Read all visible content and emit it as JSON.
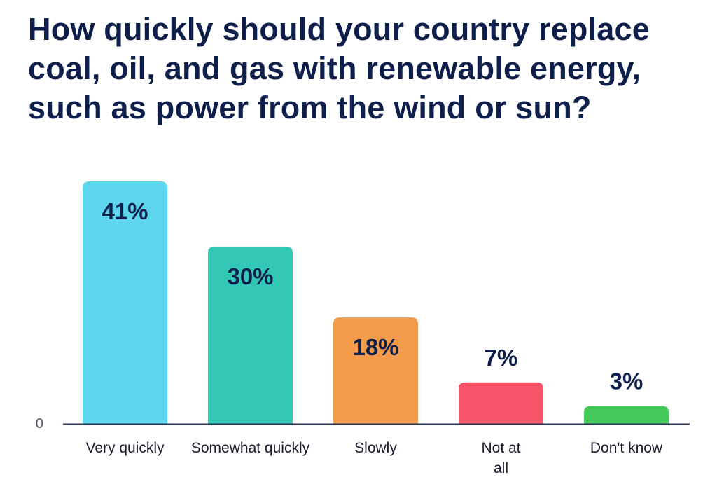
{
  "chart_data": {
    "type": "bar",
    "title": "How quickly should your country replace coal, oil, and gas with renewable energy, such as power from the wind or sun?",
    "categories": [
      "Very quickly",
      "Somewhat quickly",
      "Slowly",
      "Not at all",
      "Don't know"
    ],
    "category_lines": [
      [
        "Very quickly"
      ],
      [
        "Somewhat quickly"
      ],
      [
        "Slowly"
      ],
      [
        "Not at",
        "all"
      ],
      [
        "Don't know"
      ]
    ],
    "values": [
      41,
      30,
      18,
      7,
      3
    ],
    "value_labels": [
      "41%",
      "30%",
      "18%",
      "7%",
      "3%"
    ],
    "colors": [
      "#5dd6ee",
      "#33c8b6",
      "#f29b4b",
      "#f65466",
      "#44c95a"
    ],
    "y_tick_label": "0",
    "ylim": [
      0,
      41
    ],
    "grid": false,
    "legend": "none"
  }
}
